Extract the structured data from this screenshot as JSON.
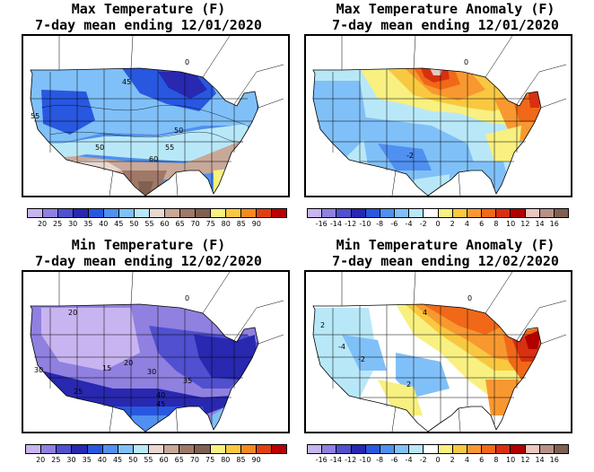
{
  "panels": [
    {
      "title_line1": "Max Temperature (F)",
      "title_line2": "7-day mean ending 12/01/2020",
      "type": "absolute",
      "contour_labels": [
        "45",
        "55",
        "50",
        "55",
        "50",
        "60",
        "0"
      ],
      "colorbar": {
        "colors": [
          "#c8b4f0",
          "#9080e0",
          "#5050d0",
          "#2828b0",
          "#2858e0",
          "#5090f0",
          "#80c0f8",
          "#b8e8f8",
          "#e8d8d0",
          "#c8a898",
          "#a07868",
          "#806050",
          "#f8f080",
          "#f8c840",
          "#f88820",
          "#e04010",
          "#b80000"
        ],
        "labels": [
          "20",
          "25",
          "30",
          "35",
          "40",
          "45",
          "50",
          "55",
          "60",
          "65",
          "70",
          "75",
          "80",
          "85",
          "90"
        ]
      }
    },
    {
      "title_line1": "Max Temperature Anomaly (F)",
      "title_line2": "7-day mean ending 12/01/2020",
      "type": "anomaly",
      "contour_labels": [
        "0",
        "-2"
      ],
      "colorbar": {
        "colors": [
          "#c8b4f0",
          "#9080e0",
          "#5050d0",
          "#2828b0",
          "#2858e0",
          "#5090f0",
          "#80c0f8",
          "#b8e8f8",
          "#ffffff",
          "#f8f080",
          "#f8c840",
          "#f89830",
          "#f06818",
          "#d83010",
          "#b00000",
          "#e8c8c0",
          "#b89088",
          "#806050"
        ],
        "labels": [
          "-16",
          "-14",
          "-12",
          "-10",
          "-8",
          "-6",
          "-4",
          "-2",
          "0",
          "2",
          "4",
          "6",
          "8",
          "10",
          "12",
          "14",
          "16"
        ]
      }
    },
    {
      "title_line1": "Min Temperature (F)",
      "title_line2": "7-day mean ending 12/02/2020",
      "type": "absolute",
      "contour_labels": [
        "20",
        "30",
        "15",
        "20",
        "30",
        "35",
        "40",
        "45",
        "25",
        "0"
      ],
      "colorbar": {
        "colors": [
          "#c8b4f0",
          "#9080e0",
          "#5050d0",
          "#2828b0",
          "#2858e0",
          "#5090f0",
          "#80c0f8",
          "#b8e8f8",
          "#e8d8d0",
          "#c8a898",
          "#a07868",
          "#806050",
          "#f8f080",
          "#f8c840",
          "#f88820",
          "#e04010",
          "#b80000"
        ],
        "labels": [
          "20",
          "25",
          "30",
          "35",
          "40",
          "45",
          "50",
          "55",
          "60",
          "65",
          "70",
          "75",
          "80",
          "85",
          "90"
        ]
      }
    },
    {
      "title_line1": "Min Temperature Anomaly (F)",
      "title_line2": "7-day mean ending 12/02/2020",
      "type": "anomaly",
      "contour_labels": [
        "2",
        "4",
        "-4",
        "-2",
        "2",
        "0"
      ],
      "colorbar": {
        "colors": [
          "#c8b4f0",
          "#9080e0",
          "#5050d0",
          "#2828b0",
          "#2858e0",
          "#5090f0",
          "#80c0f8",
          "#b8e8f8",
          "#ffffff",
          "#f8f080",
          "#f8c840",
          "#f89830",
          "#f06818",
          "#d83010",
          "#b00000",
          "#e8c8c0",
          "#b89088",
          "#806050"
        ],
        "labels": [
          "-16",
          "-14",
          "-12",
          "-10",
          "-8",
          "-6",
          "-4",
          "-2",
          "0",
          "2",
          "4",
          "6",
          "8",
          "10",
          "12",
          "14",
          "16"
        ]
      }
    }
  ]
}
